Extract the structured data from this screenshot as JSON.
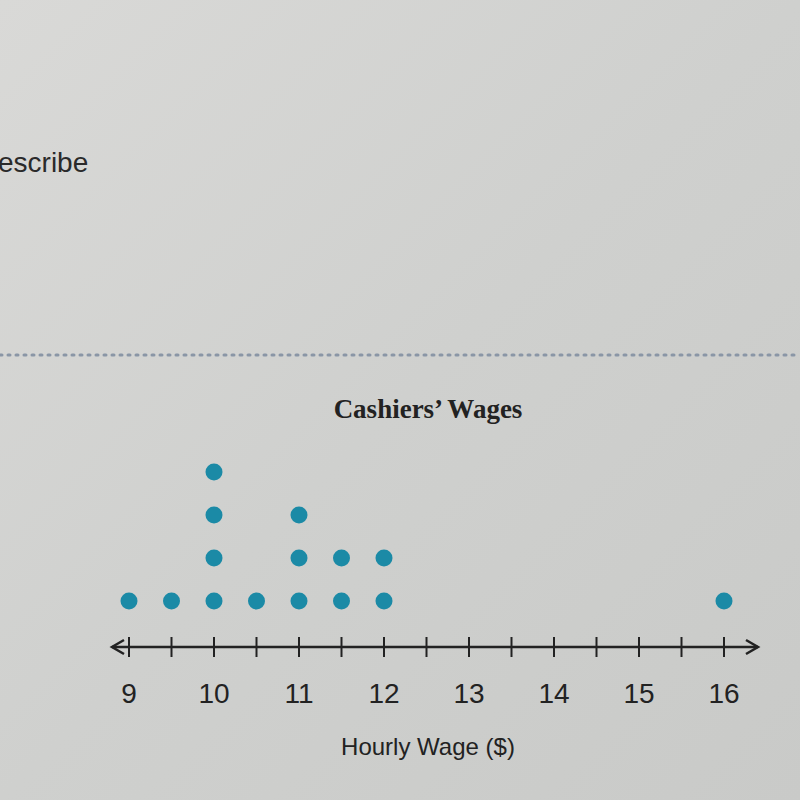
{
  "page_text": [
    "escribe"
  ],
  "chart_data": {
    "type": "dot",
    "title": "Cashiers’ Wages",
    "x_label": "Hourly Wage ($)",
    "values": [
      9,
      9.5,
      10,
      10,
      10,
      10,
      10.5,
      11,
      11,
      11,
      11.5,
      11.5,
      12,
      12,
      16
    ],
    "color": "#1b8aa6",
    "xlim": [
      8.8,
      16.4
    ],
    "xticks": [
      9,
      {
        "value": 9.5,
        "label": null
      },
      10,
      {
        "value": 10.5,
        "label": null
      },
      11,
      {
        "value": 11.5,
        "label": null
      },
      12,
      {
        "value": 12.5,
        "label": null
      },
      13,
      {
        "value": 13.5,
        "label": null
      },
      14,
      {
        "value": 14.5,
        "label": null
      },
      15,
      {
        "value": 15.5,
        "label": null
      },
      16
    ]
  }
}
